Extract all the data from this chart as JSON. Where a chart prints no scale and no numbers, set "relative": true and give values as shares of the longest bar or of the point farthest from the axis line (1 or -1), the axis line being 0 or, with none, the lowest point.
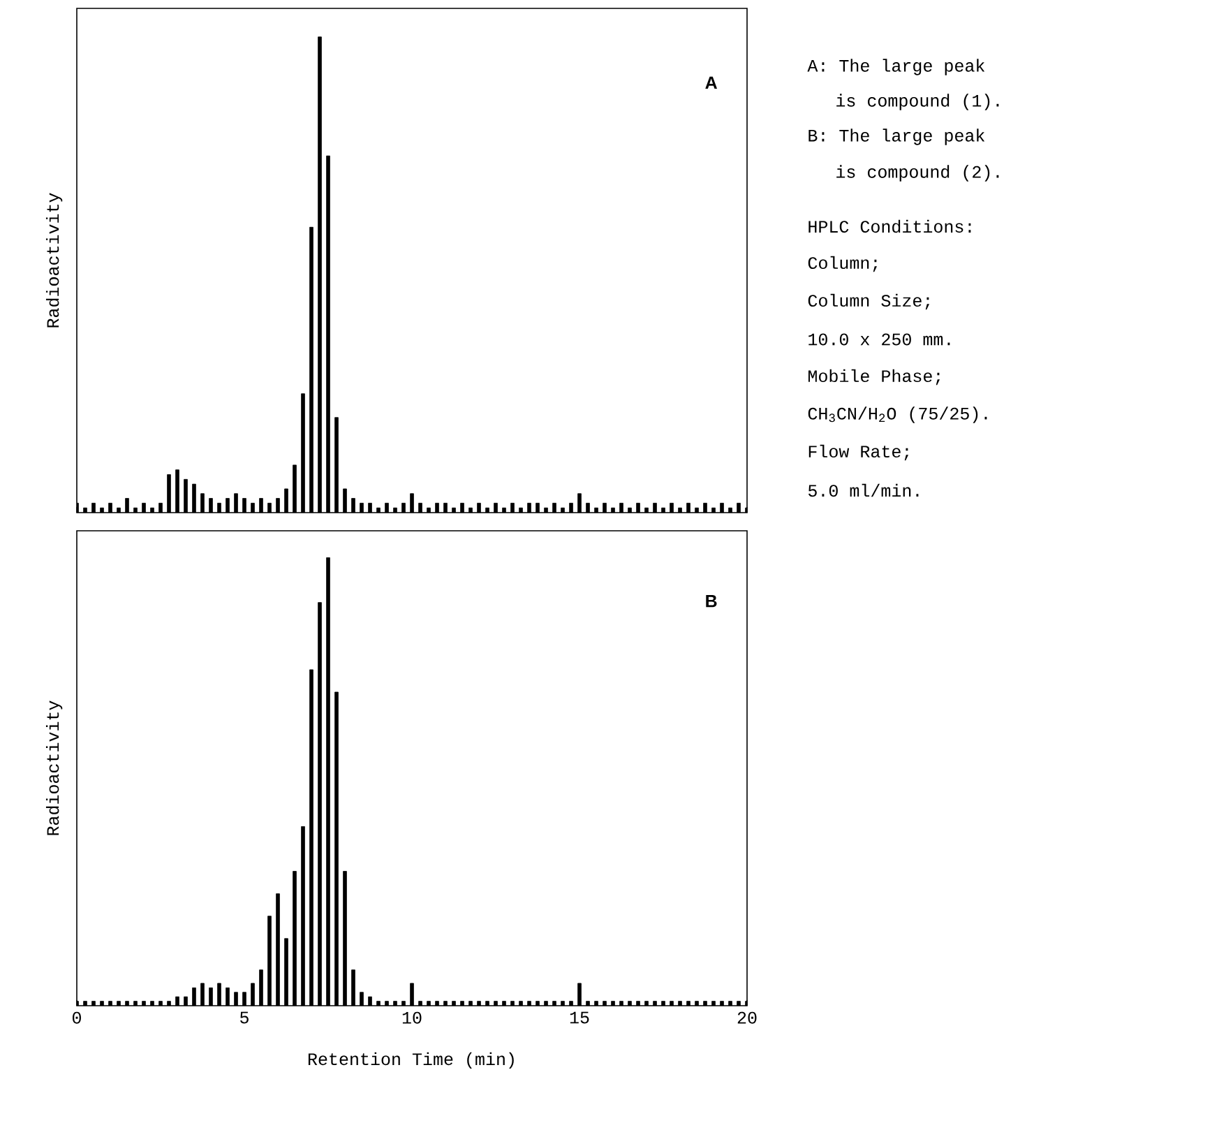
{
  "chart_data": [
    {
      "type": "bar",
      "title": "A",
      "ylabel": "Radioactivity",
      "relative": true,
      "color": "#000000",
      "xlim": [
        0,
        20
      ],
      "xticks": [
        {
          "value": 0,
          "label": null
        },
        {
          "value": 5,
          "label": null
        },
        {
          "value": 10,
          "label": null
        },
        {
          "value": 15,
          "label": null
        },
        {
          "value": 20,
          "label": null
        }
      ],
      "tick_labels": false,
      "x": [
        0,
        0.25,
        0.5,
        0.75,
        1,
        1.25,
        1.5,
        1.75,
        2,
        2.25,
        2.5,
        2.75,
        3,
        3.25,
        3.5,
        3.75,
        4,
        4.25,
        4.5,
        4.75,
        5,
        5.25,
        5.5,
        5.75,
        6,
        6.25,
        6.5,
        6.75,
        7,
        7.25,
        7.5,
        7.75,
        8,
        8.25,
        8.5,
        8.75,
        9,
        9.25,
        9.5,
        9.75,
        10,
        10.25,
        10.5,
        10.75,
        11,
        11.25,
        11.5,
        11.75,
        12,
        12.25,
        12.5,
        12.75,
        13,
        13.25,
        13.5,
        13.75,
        14,
        14.25,
        14.5,
        14.75,
        15,
        15.25,
        15.5,
        15.75,
        16,
        16.25,
        16.5,
        16.75,
        17,
        17.25,
        17.5,
        17.75,
        18,
        18.25,
        18.5,
        18.75,
        19,
        19.25,
        19.5,
        19.75,
        20
      ],
      "values": [
        0.02,
        0.01,
        0.02,
        0.01,
        0.02,
        0.01,
        0.03,
        0.01,
        0.02,
        0.01,
        0.02,
        0.08,
        0.09,
        0.07,
        0.06,
        0.04,
        0.03,
        0.02,
        0.03,
        0.04,
        0.03,
        0.02,
        0.03,
        0.02,
        0.03,
        0.05,
        0.1,
        0.25,
        0.6,
        1.0,
        0.75,
        0.2,
        0.05,
        0.03,
        0.02,
        0.02,
        0.01,
        0.02,
        0.01,
        0.02,
        0.04,
        0.02,
        0.01,
        0.02,
        0.02,
        0.01,
        0.02,
        0.01,
        0.02,
        0.01,
        0.02,
        0.01,
        0.02,
        0.01,
        0.02,
        0.02,
        0.01,
        0.02,
        0.01,
        0.02,
        0.04,
        0.02,
        0.01,
        0.02,
        0.01,
        0.02,
        0.01,
        0.02,
        0.01,
        0.02,
        0.01,
        0.02,
        0.01,
        0.02,
        0.01,
        0.02,
        0.01,
        0.02,
        0.01,
        0.02,
        0.01
      ],
      "annotations": [
        "A: The large peak",
        "is compound (1).",
        "B: The large peak",
        "is compound (2).",
        "HPLC Conditions:",
        "Column;",
        "Column Size;",
        "10.0 x 250 mm.",
        "Mobile Phase;",
        "CH$_{3}$CN/H$_{2}$O (75/25).",
        "Flow Rate;",
        "5.0 ml/min."
      ]
    },
    {
      "type": "bar",
      "title": "B",
      "ylabel": "Radioactivity",
      "xlabel": "Retention Time (min)",
      "relative": true,
      "color": "#000000",
      "xlim": [
        0,
        20
      ],
      "xticks": [
        0,
        5,
        10,
        15,
        20
      ],
      "tick_labels": "x",
      "x": [
        0,
        0.25,
        0.5,
        0.75,
        1,
        1.25,
        1.5,
        1.75,
        2,
        2.25,
        2.5,
        2.75,
        3,
        3.25,
        3.5,
        3.75,
        4,
        4.25,
        4.5,
        4.75,
        5,
        5.25,
        5.5,
        5.75,
        6,
        6.25,
        6.5,
        6.75,
        7,
        7.25,
        7.5,
        7.75,
        8,
        8.25,
        8.5,
        8.75,
        9,
        9.25,
        9.5,
        9.75,
        10,
        10.25,
        10.5,
        10.75,
        11,
        11.25,
        11.5,
        11.75,
        12,
        12.25,
        12.5,
        12.75,
        13,
        13.25,
        13.5,
        13.75,
        14,
        14.25,
        14.5,
        14.75,
        15,
        15.25,
        15.5,
        15.75,
        16,
        16.25,
        16.5,
        16.75,
        17,
        17.25,
        17.5,
        17.75,
        18,
        18.25,
        18.5,
        18.75,
        19,
        19.25,
        19.5,
        19.75,
        20
      ],
      "values": [
        0.01,
        0.01,
        0.01,
        0.01,
        0.01,
        0.01,
        0.01,
        0.01,
        0.01,
        0.01,
        0.01,
        0.01,
        0.02,
        0.02,
        0.04,
        0.05,
        0.04,
        0.05,
        0.04,
        0.03,
        0.03,
        0.05,
        0.08,
        0.2,
        0.25,
        0.15,
        0.3,
        0.4,
        0.75,
        0.9,
        1.0,
        0.7,
        0.3,
        0.08,
        0.03,
        0.02,
        0.01,
        0.01,
        0.01,
        0.01,
        0.05,
        0.01,
        0.01,
        0.01,
        0.01,
        0.01,
        0.01,
        0.01,
        0.01,
        0.01,
        0.01,
        0.01,
        0.01,
        0.01,
        0.01,
        0.01,
        0.01,
        0.01,
        0.01,
        0.01,
        0.05,
        0.01,
        0.01,
        0.01,
        0.01,
        0.01,
        0.01,
        0.01,
        0.01,
        0.01,
        0.01,
        0.01,
        0.01,
        0.01,
        0.01,
        0.01,
        0.01,
        0.01,
        0.01,
        0.01,
        0.01
      ]
    }
  ]
}
